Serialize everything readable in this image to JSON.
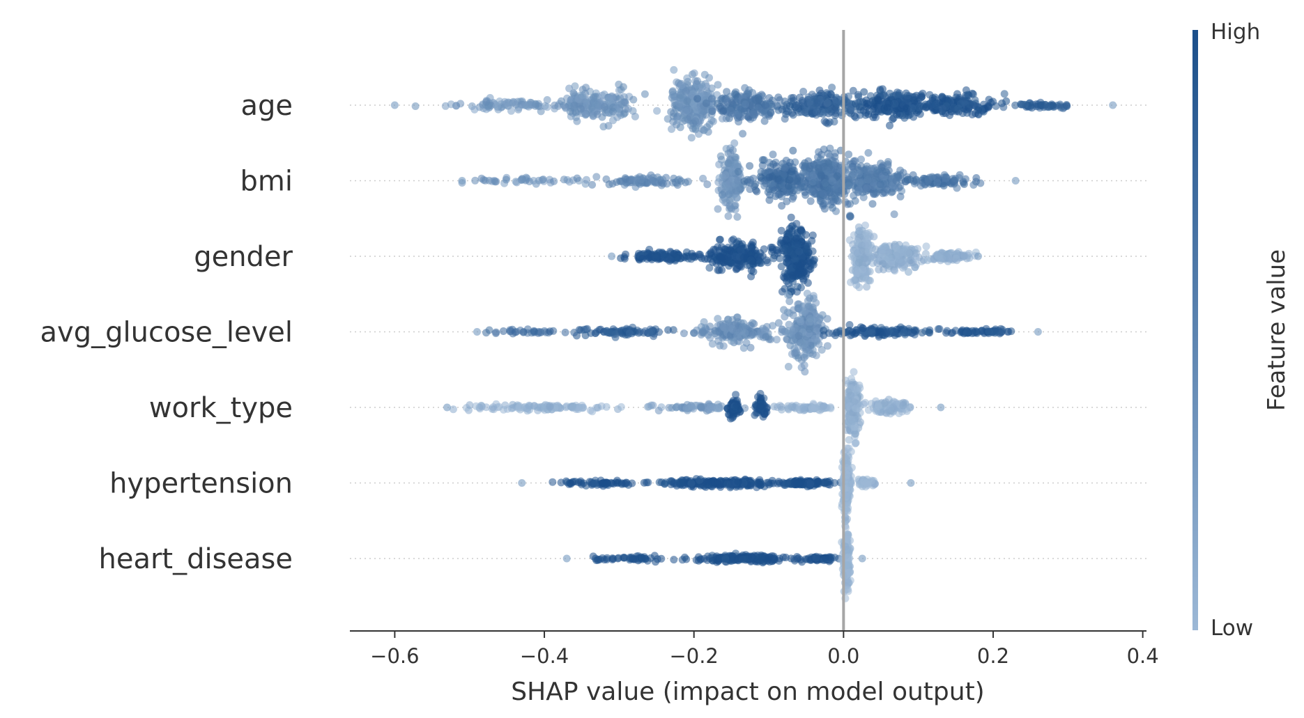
{
  "chart_data": {
    "type": "scatter",
    "subtype": "shap-beeswarm",
    "title": "",
    "xlabel": "SHAP value (impact on model output)",
    "ylabel": "",
    "xlim": [
      -0.66,
      0.405
    ],
    "xticks": [
      -0.6,
      -0.4,
      -0.2,
      0.0,
      0.2,
      0.4
    ],
    "xtick_labels": [
      "−0.6",
      "−0.4",
      "−0.2",
      "0.0",
      "0.2",
      "0.4"
    ],
    "zero_line": 0.0,
    "colorbar": {
      "title": "Feature value",
      "high_label": "High",
      "low_label": "Low",
      "high_color": "#1b4f8a",
      "low_color": "#9cb8d6"
    },
    "features": [
      {
        "name": "age",
        "min": -0.6,
        "max": 0.36,
        "blobs": [
          {
            "x": -0.45,
            "w": 0.07,
            "h": 0.15,
            "n": 80,
            "c": 0.3
          },
          {
            "x": -0.33,
            "w": 0.05,
            "h": 0.45,
            "n": 180,
            "c": 0.35
          },
          {
            "x": -0.2,
            "w": 0.03,
            "h": 0.8,
            "n": 260,
            "c": 0.35
          },
          {
            "x": -0.13,
            "w": 0.04,
            "h": 0.45,
            "n": 180,
            "c": 0.6
          },
          {
            "x": -0.03,
            "w": 0.05,
            "h": 0.4,
            "n": 200,
            "c": 0.8
          },
          {
            "x": 0.07,
            "w": 0.05,
            "h": 0.4,
            "n": 200,
            "c": 0.95
          },
          {
            "x": 0.15,
            "w": 0.05,
            "h": 0.3,
            "n": 160,
            "c": 0.95
          },
          {
            "x": 0.27,
            "w": 0.04,
            "h": 0.1,
            "n": 50,
            "c": 0.85
          }
        ]
      },
      {
        "name": "bmi",
        "min": -0.51,
        "max": 0.23,
        "blobs": [
          {
            "x": -0.42,
            "w": 0.08,
            "h": 0.08,
            "n": 40,
            "c": 0.35
          },
          {
            "x": -0.26,
            "w": 0.06,
            "h": 0.15,
            "n": 80,
            "c": 0.45
          },
          {
            "x": -0.15,
            "w": 0.015,
            "h": 0.85,
            "n": 160,
            "c": 0.35
          },
          {
            "x": -0.08,
            "w": 0.04,
            "h": 0.55,
            "n": 220,
            "c": 0.7
          },
          {
            "x": -0.02,
            "w": 0.03,
            "h": 0.8,
            "n": 280,
            "c": 0.6
          },
          {
            "x": 0.04,
            "w": 0.04,
            "h": 0.55,
            "n": 220,
            "c": 0.55
          },
          {
            "x": 0.12,
            "w": 0.05,
            "h": 0.15,
            "n": 80,
            "c": 0.65
          }
        ]
      },
      {
        "name": "gender",
        "min": -0.31,
        "max": 0.18,
        "blobs": [
          {
            "x": -0.24,
            "w": 0.05,
            "h": 0.12,
            "n": 120,
            "c": 1.0
          },
          {
            "x": -0.14,
            "w": 0.04,
            "h": 0.35,
            "n": 200,
            "c": 1.0
          },
          {
            "x": -0.065,
            "w": 0.02,
            "h": 0.85,
            "n": 280,
            "c": 1.0
          },
          {
            "x": 0.025,
            "w": 0.012,
            "h": 0.85,
            "n": 200,
            "c": 0.05
          },
          {
            "x": 0.07,
            "w": 0.03,
            "h": 0.35,
            "n": 200,
            "c": 0.1
          },
          {
            "x": 0.14,
            "w": 0.03,
            "h": 0.12,
            "n": 100,
            "c": 0.1
          }
        ]
      },
      {
        "name": "avg_glucose_level",
        "min": -0.49,
        "max": 0.26,
        "blobs": [
          {
            "x": -0.42,
            "w": 0.06,
            "h": 0.06,
            "n": 30,
            "c": 0.7
          },
          {
            "x": -0.3,
            "w": 0.07,
            "h": 0.1,
            "n": 80,
            "c": 0.85
          },
          {
            "x": -0.14,
            "w": 0.05,
            "h": 0.3,
            "n": 160,
            "c": 0.4
          },
          {
            "x": -0.05,
            "w": 0.025,
            "h": 0.85,
            "n": 260,
            "c": 0.35
          },
          {
            "x": 0.05,
            "w": 0.06,
            "h": 0.12,
            "n": 120,
            "c": 0.9
          },
          {
            "x": 0.19,
            "w": 0.05,
            "h": 0.08,
            "n": 60,
            "c": 0.95
          }
        ]
      },
      {
        "name": "work_type",
        "min": -0.53,
        "max": 0.13,
        "blobs": [
          {
            "x": -0.4,
            "w": 0.1,
            "h": 0.08,
            "n": 100,
            "c": 0.05
          },
          {
            "x": -0.2,
            "w": 0.05,
            "h": 0.1,
            "n": 60,
            "c": 0.3
          },
          {
            "x": -0.145,
            "w": 0.008,
            "h": 0.3,
            "n": 50,
            "c": 1.0
          },
          {
            "x": -0.11,
            "w": 0.008,
            "h": 0.3,
            "n": 50,
            "c": 1.0
          },
          {
            "x": -0.05,
            "w": 0.04,
            "h": 0.08,
            "n": 60,
            "c": 0.05
          },
          {
            "x": 0.012,
            "w": 0.008,
            "h": 0.85,
            "n": 200,
            "c": 0.05
          },
          {
            "x": 0.06,
            "w": 0.03,
            "h": 0.2,
            "n": 100,
            "c": 0.05
          }
        ]
      },
      {
        "name": "hypertension",
        "min": -0.43,
        "max": 0.09,
        "blobs": [
          {
            "x": -0.33,
            "w": 0.06,
            "h": 0.08,
            "n": 60,
            "c": 1.0
          },
          {
            "x": -0.17,
            "w": 0.08,
            "h": 0.1,
            "n": 220,
            "c": 1.0
          },
          {
            "x": -0.05,
            "w": 0.03,
            "h": 0.08,
            "n": 100,
            "c": 1.0
          },
          {
            "x": 0.004,
            "w": 0.005,
            "h": 0.85,
            "n": 180,
            "c": 0.0
          },
          {
            "x": 0.03,
            "w": 0.015,
            "h": 0.12,
            "n": 40,
            "c": 0.0
          }
        ]
      },
      {
        "name": "heart_disease",
        "min": -0.37,
        "max": 0.025,
        "blobs": [
          {
            "x": -0.28,
            "w": 0.05,
            "h": 0.08,
            "n": 50,
            "c": 1.0
          },
          {
            "x": -0.13,
            "w": 0.06,
            "h": 0.1,
            "n": 180,
            "c": 1.0
          },
          {
            "x": -0.03,
            "w": 0.02,
            "h": 0.06,
            "n": 50,
            "c": 1.0
          },
          {
            "x": 0.004,
            "w": 0.005,
            "h": 0.85,
            "n": 160,
            "c": 0.0
          }
        ]
      }
    ]
  }
}
